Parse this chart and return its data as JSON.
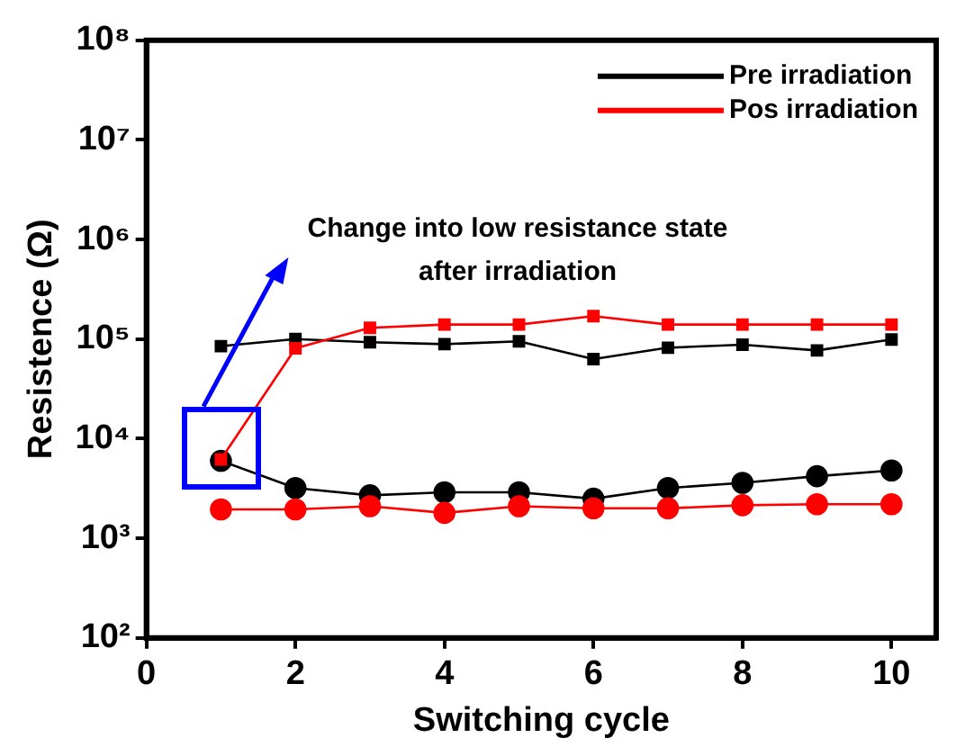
{
  "chart_data": {
    "type": "line",
    "xlabel": "Switching cycle",
    "ylabel": "Resistence (Ω)",
    "x": [
      1,
      2,
      3,
      4,
      5,
      6,
      7,
      8,
      9,
      10
    ],
    "series": [
      {
        "name": "Pre irradiation",
        "color": "#000000",
        "marker": "square",
        "values": [
          85000,
          100000,
          93000,
          89000,
          95000,
          63000,
          82000,
          88000,
          77000,
          99000
        ]
      },
      {
        "color": "#000000",
        "marker": "circle",
        "values": [
          6000,
          3200,
          2700,
          2900,
          2900,
          2500,
          3200,
          3600,
          4200,
          4800
        ]
      },
      {
        "name": "Pos irradiation",
        "color": "#ff0000",
        "marker": "square",
        "values": [
          6200,
          81000,
          130000,
          140000,
          140000,
          170000,
          140000,
          140000,
          140000,
          140000
        ]
      },
      {
        "color": "#ff0000",
        "marker": "circle",
        "values": [
          1950,
          1950,
          2100,
          1800,
          2100,
          2000,
          2000,
          2150,
          2200,
          2200
        ]
      }
    ],
    "log": "y",
    "xlim": [
      0,
      10.6
    ],
    "xticks": [
      0,
      2,
      4,
      6,
      8,
      10
    ],
    "ylim": [
      100,
      100000000
    ],
    "yticks": [
      {
        "value": 100,
        "label": "10²"
      },
      {
        "value": 1000,
        "label": "10³"
      },
      {
        "value": 10000,
        "label": "10⁴"
      },
      {
        "value": 100000,
        "label": "10⁵"
      },
      {
        "value": 1000000,
        "label": "10⁶"
      },
      {
        "value": 10000000,
        "label": "10⁷"
      },
      {
        "value": 100000000,
        "label": "10⁸"
      }
    ],
    "grid": false,
    "legend": "top right",
    "annotations": [
      "Change into low resistance state after irradiation"
    ]
  }
}
